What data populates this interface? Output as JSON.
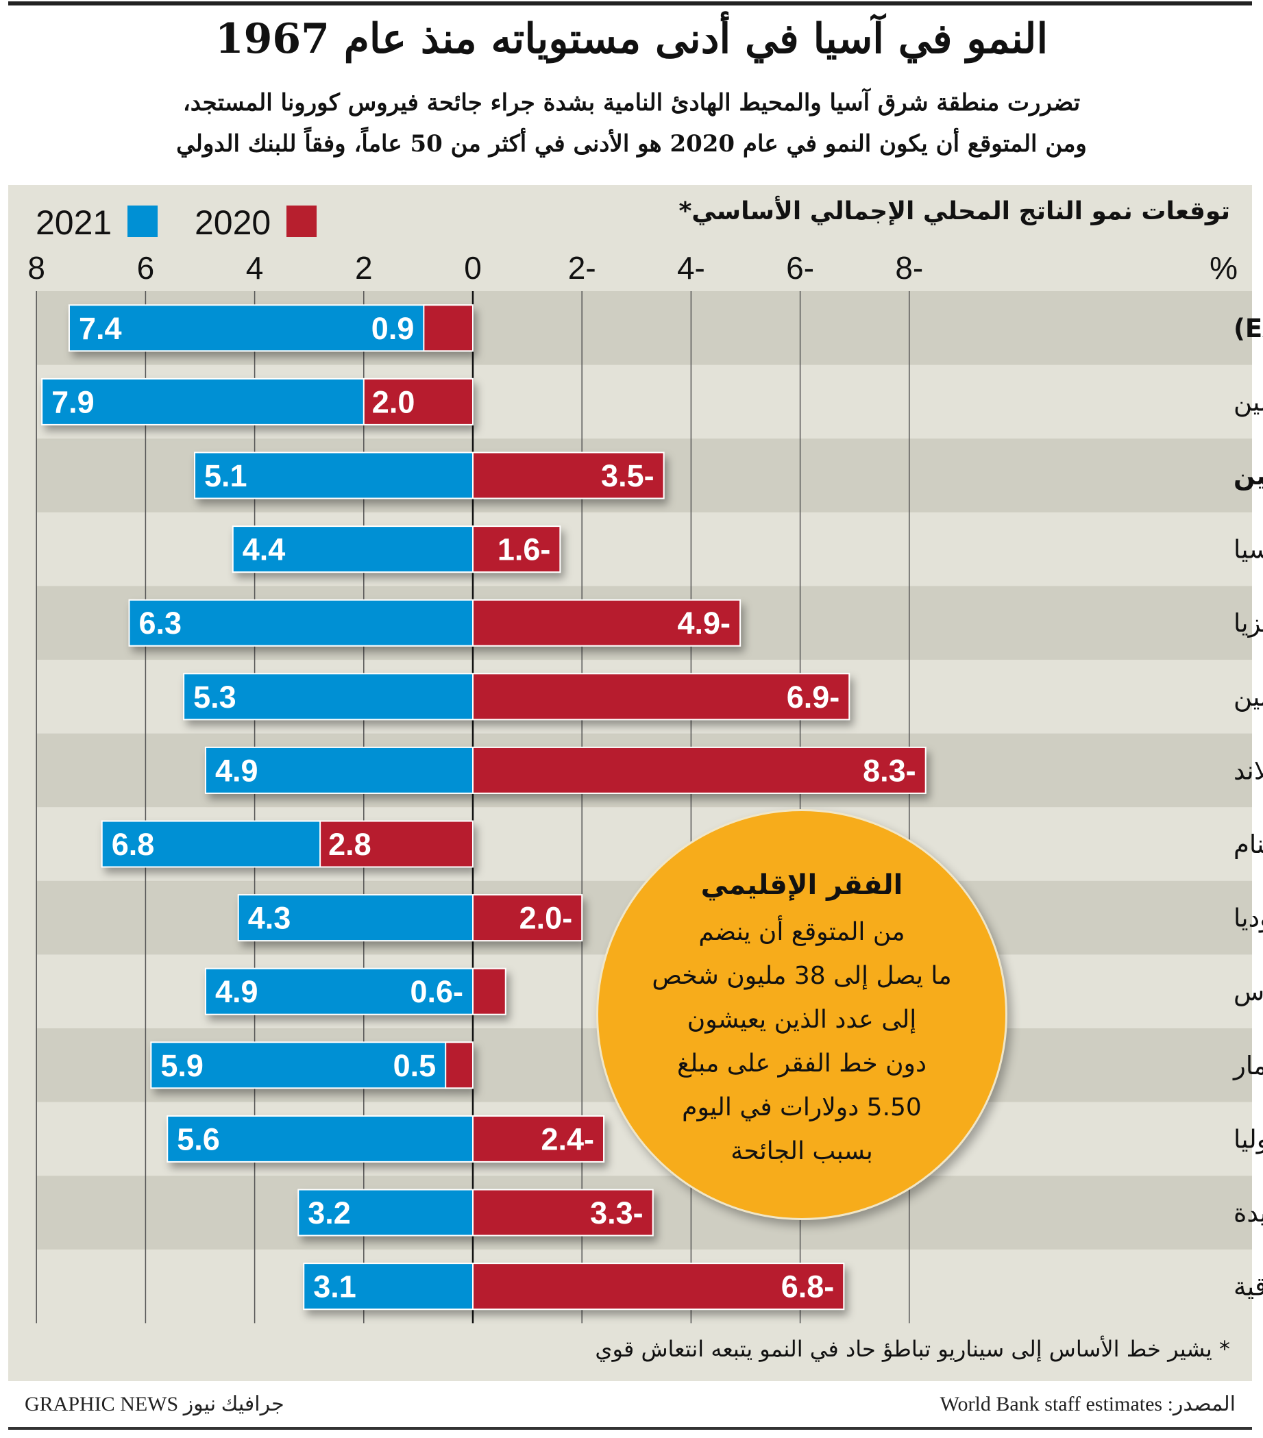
{
  "header": {
    "title": "النمو في آسيا في أدنى مستوياته منذ عام 1967",
    "subtitle_lines": [
      "تضررت منطقة شرق آسيا والمحيط الهادئ النامية بشدة جراء جائحة فيروس كورونا المستجد،",
      "ومن المتوقع أن يكون النمو في عام 2020 هو الأدنى في أكثر من 50 عاماً، وفقاً للبنك الدولي"
    ]
  },
  "chart_data": {
    "type": "bar",
    "title": "توقعات نمو الناتج المحلي الإجمالي الأساسي*",
    "unit": "%",
    "orientation": "horizontal",
    "xlim": [
      8,
      -8
    ],
    "tick_labels": [
      "8",
      "6",
      "4",
      "2",
      "0",
      "2-",
      "4-",
      "6-",
      "8-"
    ],
    "grid": true,
    "legend_position": "top-left",
    "categories": [
      "الدول النامية لمنطقة شرق آسيا والمحيط الهادئ (EAP)",
      "الصين",
      "دول EAP باستثناء الصين",
      "إندونيسيا",
      "ماليزيا",
      "الفلبين",
      "تايلاند",
      "فيتنام",
      "كمبوديا",
      "لاوس",
      "ميانمار",
      "منغوليا",
      "بابوا غينيا الجديدة",
      "تيمور الشرقية"
    ],
    "series": [
      {
        "name": "2021",
        "color": "#0090d4",
        "values": [
          7.4,
          7.9,
          5.1,
          4.4,
          6.3,
          5.3,
          4.9,
          6.8,
          4.3,
          4.9,
          5.9,
          5.6,
          3.2,
          3.1
        ],
        "labels": [
          "7.4",
          "7.9",
          "5.1",
          "4.4",
          "6.3",
          "5.3",
          "4.9",
          "6.8",
          "4.3",
          "4.9",
          "5.9",
          "5.6",
          "3.2",
          "3.1"
        ]
      },
      {
        "name": "2020",
        "color": "#b71f2e",
        "values": [
          0.9,
          2.0,
          -3.5,
          -1.6,
          -4.9,
          -6.9,
          -8.3,
          2.8,
          -2.0,
          -0.6,
          0.5,
          -2.4,
          -3.3,
          -6.8
        ],
        "labels": [
          "0.9",
          "2.0",
          "3.5-",
          "1.6-",
          "4.9-",
          "6.9-",
          "8.3-",
          "2.8",
          "2.0-",
          "0.6-",
          "0.5",
          "2.4-",
          "3.3-",
          "6.8-"
        ]
      }
    ],
    "bold_rows": [
      0,
      2
    ]
  },
  "callout": {
    "heading": "الفقر الإقليمي",
    "lines": [
      "من المتوقع أن ينضم",
      "ما يصل إلى 38 مليون شخص",
      "إلى عدد الذين يعيشون",
      "دون خط الفقر على مبلغ",
      "5.50 دولارات في اليوم",
      "بسبب الجائحة"
    ],
    "color": "#f7ac1b"
  },
  "footnote": "* يشير خط الأساس إلى سيناريو تباطؤ حاد في النمو يتبعه انتعاش قوي",
  "footer": {
    "source": "المصدر: World Bank staff estimates",
    "credit": "GRAPHIC NEWS جرافيك نيوز"
  }
}
